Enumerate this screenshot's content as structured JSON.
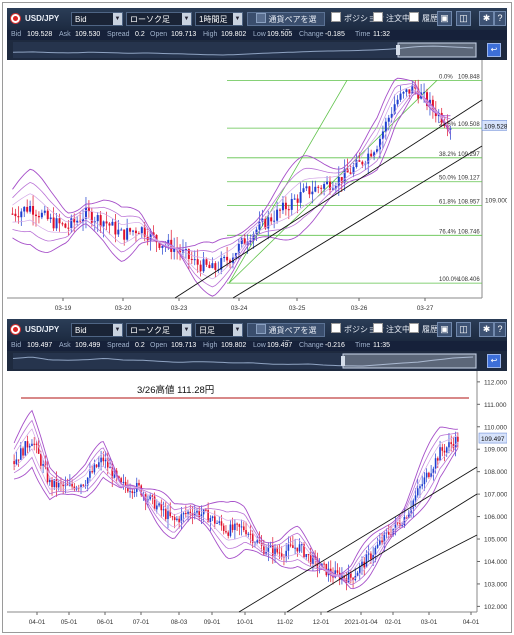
{
  "panels": [
    {
      "toolbar": {
        "symbol": "USD/JPY",
        "price_type": "Bid",
        "chart_type": "ローソク足",
        "timeframe": "1時間足",
        "pair_button": "通貨ペアを選択",
        "position": "ポジション",
        "order": "注文中",
        "history": "履歴"
      },
      "quote": {
        "bid_label": "Bid",
        "bid": "109.528",
        "ask_label": "Ask",
        "ask": "109.530",
        "spread_label": "Spread",
        "spread": "0.2",
        "open_label": "Open",
        "open": "109.713",
        "high_label": "High",
        "high": "109.802",
        "low_label": "Low",
        "low": "109.505",
        "change_label": "Change",
        "change": "-0.185",
        "time_label": "Time",
        "time": "11:32"
      },
      "price_tag": "109.528",
      "fib_labels": [
        "0.0%",
        "23.6%",
        "38.2%",
        "50.0%",
        "61.8%",
        "76.4%",
        "100.0%"
      ],
      "fib_prices": [
        "109.848",
        "109.508",
        "109.297",
        "109.127",
        "108.957",
        "108.746",
        "108.406"
      ],
      "y_tick_label": "109.000",
      "x_ticks": [
        "03-19",
        "03-20",
        "03-23",
        "03-24",
        "03-25",
        "03-26",
        "03-27"
      ]
    },
    {
      "toolbar": {
        "symbol": "USD/JPY",
        "price_type": "Bid",
        "chart_type": "ローソク足",
        "timeframe": "日足",
        "pair_button": "通貨ペアを選択",
        "position": "ポジション",
        "order": "注文中",
        "history": "履歴"
      },
      "quote": {
        "bid_label": "Bid",
        "bid": "109.497",
        "ask_label": "Ask",
        "ask": "109.499",
        "spread_label": "Spread",
        "spread": "0.2",
        "open_label": "Open",
        "open": "109.713",
        "high_label": "High",
        "high": "109.802",
        "low_label": "Low",
        "low": "109.497",
        "change_label": "Change",
        "change": "-0.216",
        "time_label": "Time",
        "time": "11:35"
      },
      "price_tag": "109.497",
      "annotation": "3/26高値 111.28円",
      "y_ticks": [
        "112.000",
        "111.000",
        "110.000",
        "109.000",
        "108.000",
        "107.000",
        "106.000",
        "105.000",
        "104.000",
        "103.000",
        "102.000"
      ],
      "x_ticks": [
        "04-01",
        "05-01",
        "06-01",
        "07-01",
        "08-03",
        "09-01",
        "10-01",
        "11-02",
        "12-01",
        "2021-01-04",
        "02-01",
        "03-01",
        "04-01"
      ]
    }
  ],
  "chart_data": [
    {
      "type": "candlestick",
      "title": "USD/JPY 1時間足",
      "x_ticks": [
        "03-19",
        "03-20",
        "03-23",
        "03-24",
        "03-25",
        "03-26",
        "03-27"
      ],
      "fibonacci": [
        {
          "level": "0.0%",
          "price": 109.848
        },
        {
          "level": "23.6%",
          "price": 109.508
        },
        {
          "level": "38.2%",
          "price": 109.297
        },
        {
          "level": "50.0%",
          "price": 109.127
        },
        {
          "level": "61.8%",
          "price": 108.957
        },
        {
          "level": "76.4%",
          "price": 108.746
        },
        {
          "level": "100.0%",
          "price": 108.406
        }
      ],
      "last_price": 109.528,
      "trend": [
        108.9,
        108.95,
        108.85,
        108.8,
        108.9,
        108.85,
        108.75,
        108.8,
        108.7,
        108.65,
        108.55,
        108.5,
        108.6,
        108.75,
        108.85,
        108.95,
        109.05,
        109.1,
        109.15,
        109.25,
        109.4,
        109.7,
        109.8,
        109.65,
        109.53
      ],
      "indicators": [
        "bollinger bands",
        "ascending channel",
        "fibonacci retracement"
      ]
    },
    {
      "type": "candlestick",
      "title": "USD/JPY 日足",
      "y_range": [
        102,
        112
      ],
      "x_ticks": [
        "04-01",
        "05-01",
        "06-01",
        "07-01",
        "08-03",
        "09-01",
        "10-01",
        "11-02",
        "12-01",
        "2021-01-04",
        "02-01",
        "03-01",
        "04-01"
      ],
      "annotation_line": {
        "label": "3/26高値 111.28円",
        "price": 111.28
      },
      "last_price": 109.497,
      "trend": [
        108.5,
        109.5,
        107.5,
        107.3,
        107.6,
        108.6,
        107.4,
        107.3,
        106.5,
        105.8,
        106.3,
        106.0,
        105.4,
        105.5,
        104.6,
        104.4,
        104.7,
        103.9,
        103.4,
        103.3,
        104.2,
        105.2,
        106.0,
        107.5,
        108.9,
        109.5
      ]
    }
  ]
}
